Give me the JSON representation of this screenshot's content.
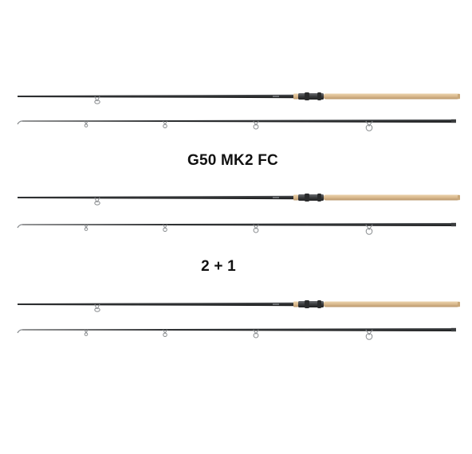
{
  "product": {
    "model_label": "G50 MK2 FC",
    "set_label": "2 + 1"
  },
  "colors": {
    "background": "#ffffff",
    "blank": "#2b2d2f",
    "cork": "#d9b98e",
    "reel_seat": "#3a3b3d",
    "guide": "#8a8d90"
  },
  "rods": {
    "count": 3,
    "sections_per_rod": 2
  }
}
